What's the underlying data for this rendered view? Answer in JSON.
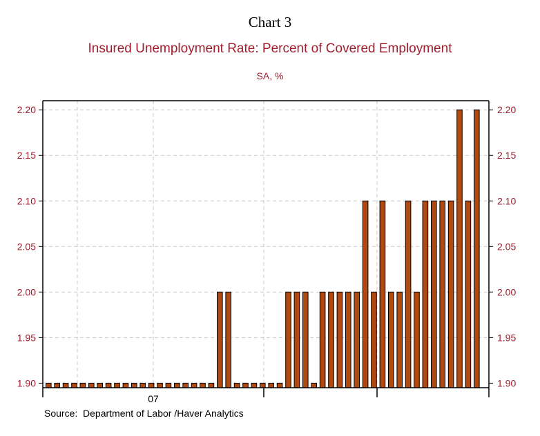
{
  "chart_data": {
    "type": "bar",
    "heading": "Chart 3",
    "title": "Insured Unemployment Rate: Percent of Covered Employment",
    "subtitle": "SA, %",
    "source": "Source:  Department of Labor /Haver Analytics",
    "xlabel": "",
    "ylabel": "",
    "ylim": [
      1.895,
      2.21
    ],
    "yticks": [
      "1.90",
      "1.95",
      "2.00",
      "2.05",
      "2.10",
      "2.15",
      "2.20"
    ],
    "ytick_values": [
      1.9,
      1.95,
      2.0,
      2.05,
      2.1,
      2.15,
      2.2
    ],
    "xtick_labels": [
      {
        "label": "07",
        "after_bar": 12
      }
    ],
    "grid": true,
    "colors": {
      "bar": "#b04a10",
      "bar_edge": "#000000",
      "axis_text": "#a01c2c",
      "grid": "#c8c8c8"
    },
    "values": [
      1.9,
      1.9,
      1.9,
      1.9,
      1.9,
      1.9,
      1.9,
      1.9,
      1.9,
      1.9,
      1.9,
      1.9,
      1.9,
      1.9,
      1.9,
      1.9,
      1.9,
      1.9,
      1.9,
      1.9,
      2.0,
      2.0,
      1.9,
      1.9,
      1.9,
      1.9,
      1.9,
      1.9,
      2.0,
      2.0,
      2.0,
      1.9,
      2.0,
      2.0,
      2.0,
      2.0,
      2.0,
      2.1,
      2.0,
      2.1,
      2.0,
      2.0,
      2.1,
      2.0,
      2.1,
      2.1,
      2.1,
      2.1,
      2.2,
      2.1,
      2.2
    ]
  }
}
